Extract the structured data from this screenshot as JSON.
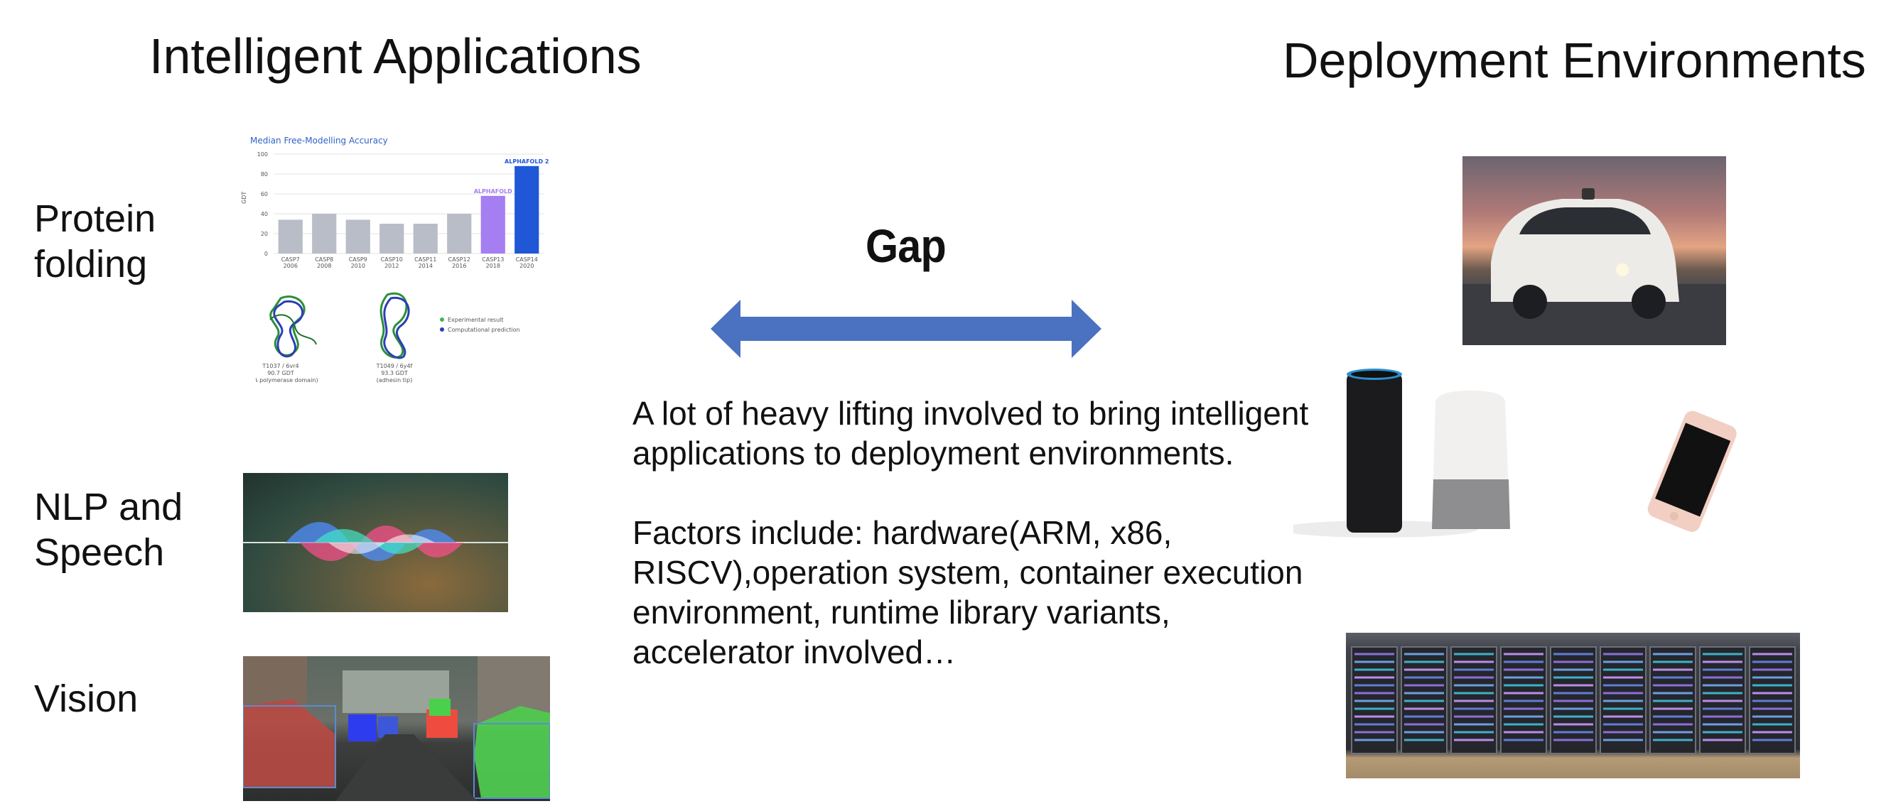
{
  "headings": {
    "left": "Intelligent Applications",
    "right": "Deployment Environments"
  },
  "applications": [
    {
      "label_line1": "Protein",
      "label_line2": "folding"
    },
    {
      "label_line1": "NLP and",
      "label_line2": "Speech"
    },
    {
      "label_line1": "Vision",
      "label_line2": ""
    }
  ],
  "gap": {
    "label": "Gap",
    "arrow_color": "#4a72c0"
  },
  "description": {
    "paragraph1": "A lot of heavy lifting involved to bring intelligent applications to deployment environments.",
    "paragraph2": "Factors include: hardware(ARM, x86, RISCV),operation system, container execution environment, runtime library variants, accelerator involved…"
  },
  "protein_figure": {
    "title": "Median Free-Modelling Accuracy",
    "ylabel": "GDT",
    "yticks": [
      "100",
      "80",
      "60",
      "40",
      "20",
      "0"
    ],
    "bars": [
      {
        "label": "CASP7",
        "year": "2006",
        "value": 34,
        "color": "#b8bdc8"
      },
      {
        "label": "CASP8",
        "year": "2008",
        "value": 40,
        "color": "#b8bdc8"
      },
      {
        "label": "CASP9",
        "year": "2010",
        "value": 34,
        "color": "#b8bdc8"
      },
      {
        "label": "CASP10",
        "year": "2012",
        "value": 30,
        "color": "#b8bdc8"
      },
      {
        "label": "CASP11",
        "year": "2014",
        "value": 30,
        "color": "#b8bdc8"
      },
      {
        "label": "CASP12",
        "year": "2016",
        "value": 40,
        "color": "#b8bdc8"
      },
      {
        "label": "CASP13",
        "year": "2018",
        "value": 58,
        "color": "#a57ef2"
      },
      {
        "label": "CASP14",
        "year": "2020",
        "value": 88,
        "color": "#1f57d6"
      }
    ],
    "annotations": [
      "ALPHAFOLD",
      "ALPHAFOLD 2"
    ],
    "legend": [
      "Experimental result",
      "Computational prediction"
    ],
    "structures": [
      {
        "id": "T1037 / 6vr4",
        "score": "90.7 GDT",
        "desc": "(RNA polymerase domain)"
      },
      {
        "id": "T1049 / 6y4f",
        "score": "93.3 GDT",
        "desc": "(adhesin tip)"
      }
    ]
  }
}
